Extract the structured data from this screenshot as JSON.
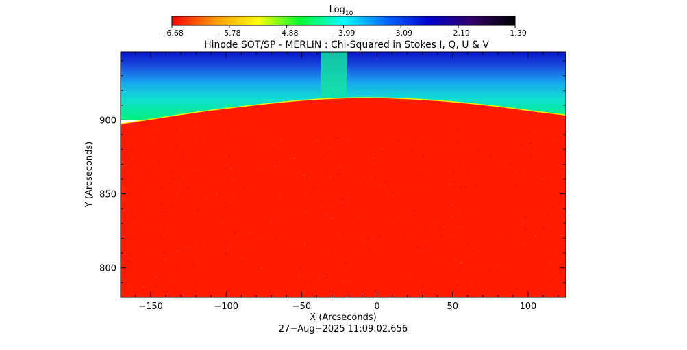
{
  "chart_data": {
    "type": "heatmap",
    "title": "Hinode SOT/SP - MERLIN : Chi-Squared in Stokes I, Q, U & V",
    "xlabel": "X (Arcseconds)",
    "ylabel": "Y (Arcseconds)",
    "xlim": [
      -170,
      125
    ],
    "ylim": [
      780,
      946
    ],
    "x_ticks": [
      -150,
      -100,
      -50,
      0,
      50,
      100
    ],
    "x_tick_labels": [
      "−150",
      "−100",
      "−50",
      "0",
      "50",
      "100"
    ],
    "y_ticks": [
      800,
      850,
      900
    ],
    "y_tick_labels": [
      "800",
      "850",
      "900"
    ],
    "colorbar": {
      "label_base": "Log",
      "label_sub": "10",
      "range": [
        -6.68,
        -1.3
      ],
      "ticks": [
        -6.68,
        -5.78,
        -4.88,
        -3.99,
        -3.09,
        -2.19,
        -1.3
      ],
      "tick_labels": [
        "−6.68",
        "−5.78",
        "−4.88",
        "−3.99",
        "−3.09",
        "−2.19",
        "−1.30"
      ],
      "colormap": [
        "#ff0000",
        "#ff9900",
        "#ffff00",
        "#00ff33",
        "#00ffff",
        "#0066ff",
        "#0000cc",
        "#330066",
        "#000000"
      ]
    },
    "limb": {
      "description_values": "solar limb height in arcsec vs X",
      "x": [
        -170,
        -120,
        -80,
        -40,
        0,
        40,
        80,
        100,
        125
      ],
      "y": [
        897,
        905,
        910,
        914,
        915,
        913,
        909,
        906,
        903
      ]
    },
    "disk_log_value": -6.6,
    "offlimb_near_log_value": -4.0,
    "offlimb_far_log_value": -2.2
  },
  "footer": {
    "timestamp": "27−Aug−2025 11:09:02.656"
  }
}
